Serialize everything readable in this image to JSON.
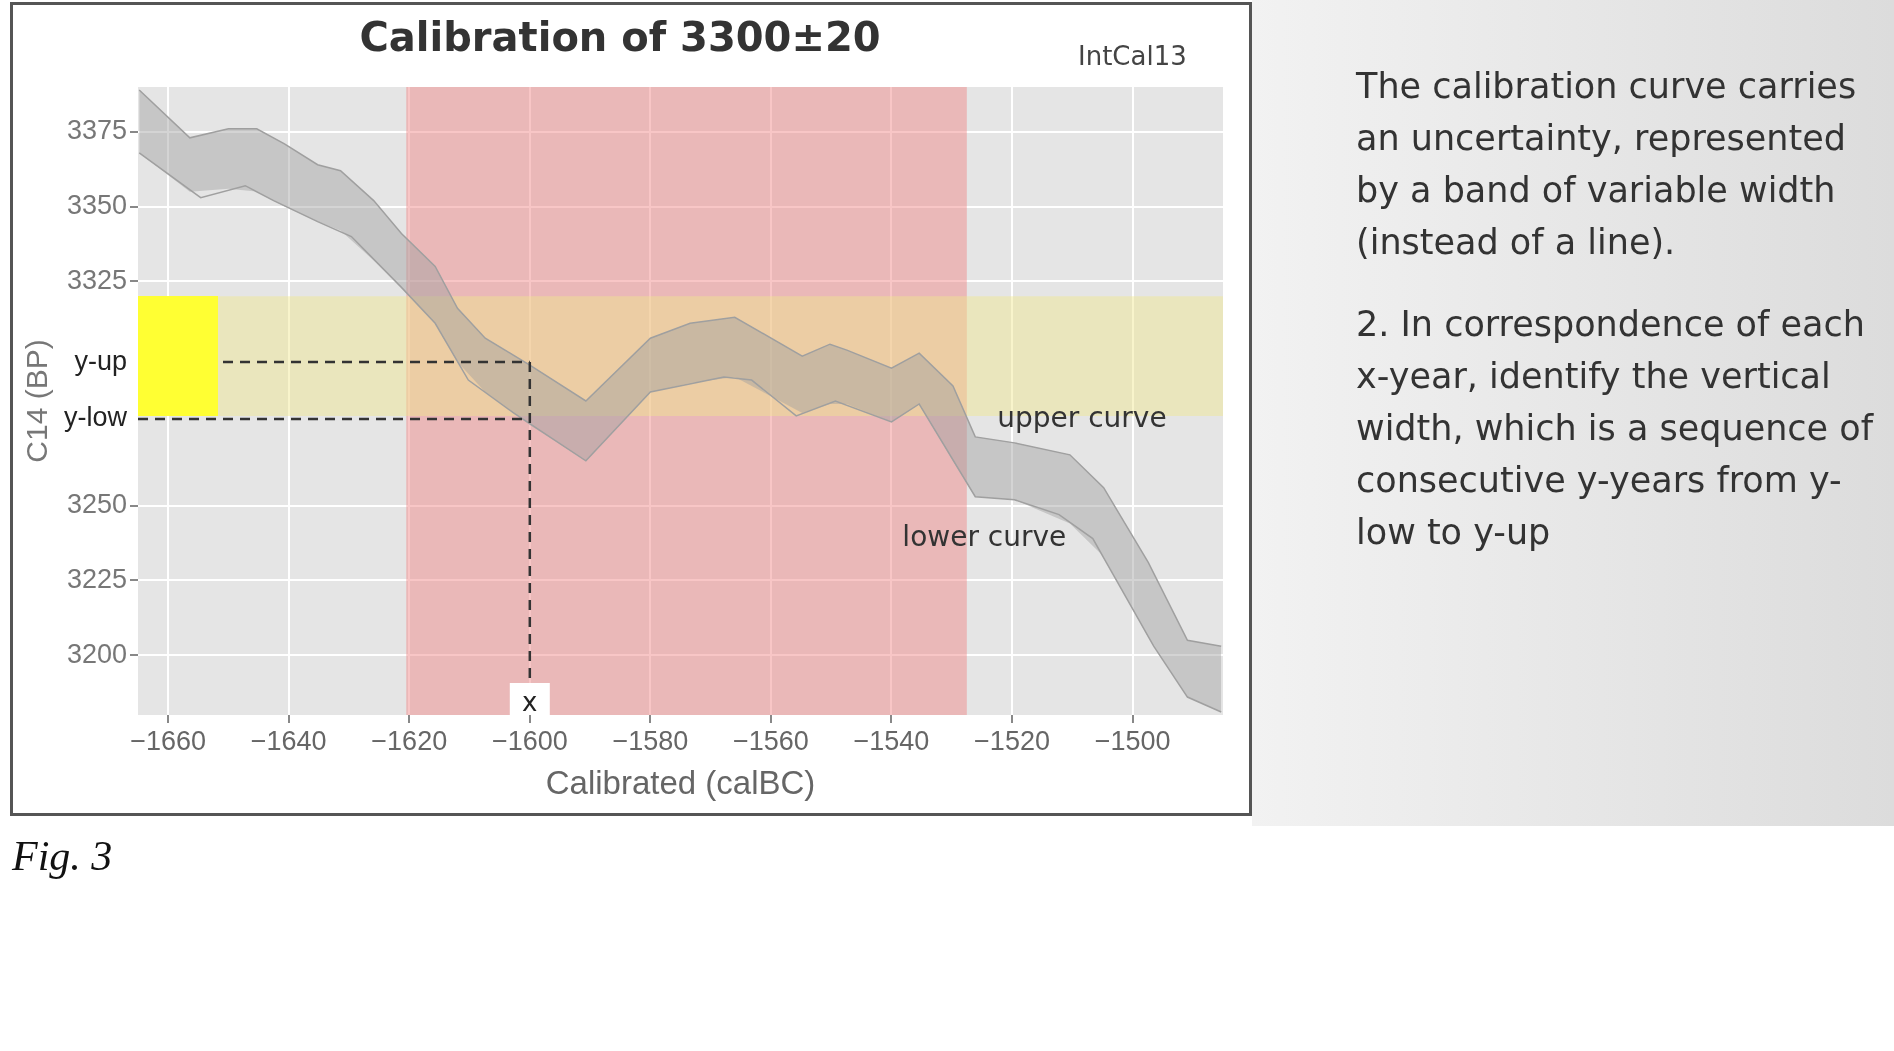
{
  "chart_data": {
    "type": "line",
    "title": "Calibration of 3300±20",
    "xlabel": "Calibrated (calBC)",
    "ylabel": "C14 (BP)",
    "series": [
      {
        "name": "upper curve",
        "color": "#a0a0a0",
        "x": [
          -1664.8,
          -1656.4,
          -1650,
          -1645.3,
          -1640.7,
          -1635.2,
          -1631.4,
          -1625.9,
          -1621.3,
          -1615.7,
          -1612,
          -1607.4,
          -1600,
          -1590.7,
          -1580,
          -1573.4,
          -1566,
          -1554.8,
          -1550.2,
          -1547.4,
          -1540,
          -1535.4,
          -1529.8,
          -1526.1,
          -1519.6,
          -1510.4,
          -1504.8,
          -1497.4,
          -1490.9,
          -1485.3
        ],
        "values": [
          3389,
          3373,
          3376,
          3376,
          3371,
          3364,
          3362,
          3352,
          3341,
          3330,
          3316,
          3306,
          3297,
          3285,
          3306,
          3311,
          3313,
          3300,
          3304,
          3302,
          3296,
          3301,
          3290,
          3273,
          3271,
          3267,
          3256,
          3231,
          3205,
          3203
        ],
        "lower": [
          3368,
          3355,
          3356,
          3355,
          3350,
          3345,
          3342,
          3332,
          3323,
          3311,
          3298,
          3288,
          3277,
          3265,
          3288,
          3291,
          3293,
          3281,
          3284,
          3284,
          3278,
          3284,
          3265,
          3253,
          3252,
          3244,
          3233,
          3206,
          3186,
          3181
        ],
        "upper": [
          3389,
          3373,
          3376,
          3376,
          3371,
          3364,
          3362,
          3352,
          3341,
          3330,
          3316,
          3306,
          3297,
          3285,
          3306,
          3311,
          3313,
          3300,
          3304,
          3302,
          3296,
          3301,
          3290,
          3273,
          3271,
          3267,
          3256,
          3231,
          3205,
          3203
        ]
      },
      {
        "name": "lower curve",
        "color": "#a0a0a0",
        "x": [
          -1664.8,
          -1654.6,
          -1647.2,
          -1642.5,
          -1635.2,
          -1629.6,
          -1621.3,
          -1615.7,
          -1610.2,
          -1602.7,
          -1590.7,
          -1580,
          -1567.8,
          -1563.2,
          -1555.8,
          -1549.3,
          -1540,
          -1535.4,
          -1526.1,
          -1519.6,
          -1512.2,
          -1506.6,
          -1496.5,
          -1490.9,
          -1485.3
        ],
        "values": [
          3368,
          3353,
          3357,
          3352,
          3345,
          3340,
          3323,
          3311,
          3292,
          3281,
          3265,
          3288,
          3293,
          3292,
          3280,
          3285,
          3278,
          3284,
          3253,
          3252,
          3247,
          3239,
          3203,
          3186,
          3181
        ]
      }
    ],
    "xlim": [
      -1665,
      -1485
    ],
    "xticks": [
      -1660,
      -1640,
      -1620,
      -1600,
      -1580,
      -1560,
      -1540,
      -1520,
      -1500
    ],
    "ylim": [
      3180,
      3390
    ],
    "yticks": [
      3200,
      3225,
      3250,
      {
        "value": 3279,
        "label": "y-low"
      },
      {
        "value": 3298,
        "label": "y-up"
      },
      3325,
      3350,
      3375
    ],
    "grid": true,
    "bands": [
      {
        "axis": "x",
        "from": -1620.5,
        "to": -1527.5,
        "color": "#f08080"
      },
      {
        "axis": "y",
        "from": 3280,
        "to": 3320,
        "color": "#f0e68c"
      }
    ],
    "ref_lines": [
      {
        "axis": "y",
        "value": 3298,
        "line_style": "dashed"
      },
      {
        "axis": "y",
        "value": 3279,
        "line_style": "dashed"
      },
      {
        "axis": "x",
        "value": -1600,
        "label": "x",
        "line_style": "dashed"
      }
    ],
    "annotations": [
      "IntCal13",
      "The calibration curve carries an uncertainty, represented by a band of variable width (instead of a line).",
      "2. In correspondence of each x-year, identify the vertical width, which is a sequence of consecutive y-years from y-low to y-up",
      "Fig. 3"
    ]
  }
}
